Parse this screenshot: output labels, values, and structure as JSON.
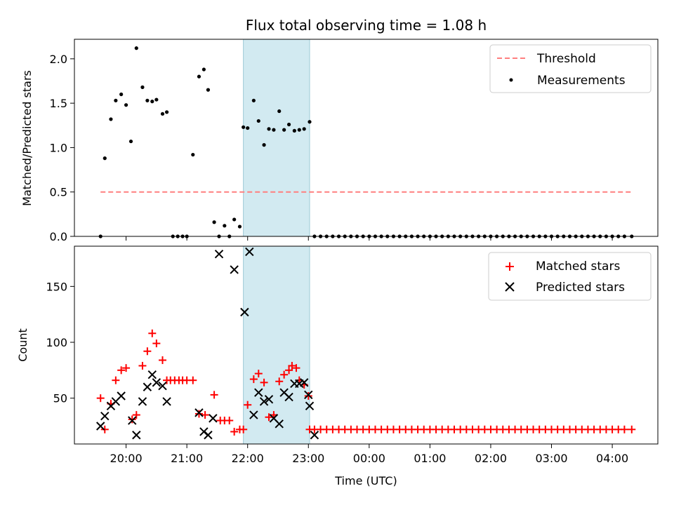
{
  "chart_data": [
    {
      "type": "scatter",
      "title": "Flux total observing time = 1.08 h",
      "xlabel": "",
      "ylabel": "Matched/Predicted stars",
      "x_unit": "hours after 20:00 UTC",
      "xlim": [
        -0.85,
        8.75
      ],
      "ylim": [
        0.0,
        2.22
      ],
      "yticks": [
        0.0,
        0.5,
        1.0,
        1.5,
        2.0
      ],
      "ytick_labels": [
        "0.0",
        "0.5",
        "1.0",
        "1.5",
        "2.0"
      ],
      "highlight_span": [
        1.93,
        3.02
      ],
      "legend": {
        "position": "top-right",
        "entries": [
          "Threshold",
          "Measurements"
        ]
      },
      "threshold": {
        "name": "Threshold",
        "x_range": [
          -0.42,
          8.32
        ],
        "y": 0.5,
        "color": "#ff7f7f"
      },
      "series": [
        {
          "name": "Measurements",
          "marker": "dot",
          "color": "#000000",
          "x": [
            -0.42,
            -0.35,
            -0.25,
            -0.17,
            -0.08,
            0.0,
            0.08,
            0.17,
            0.27,
            0.35,
            0.43,
            0.5,
            0.6,
            0.67,
            0.77,
            0.85,
            0.93,
            1.0,
            1.1,
            1.2,
            1.28,
            1.35,
            1.45,
            1.53,
            1.62,
            1.7,
            1.78,
            1.87,
            1.93,
            2.0,
            2.1,
            2.18,
            2.27,
            2.35,
            2.43,
            2.52,
            2.6,
            2.68,
            2.77,
            2.85,
            2.93,
            3.02,
            3.1,
            3.2,
            3.3,
            3.4,
            3.5,
            3.6,
            3.7,
            3.8,
            3.9,
            4.0,
            4.1,
            4.2,
            4.3,
            4.4,
            4.5,
            4.6,
            4.7,
            4.8,
            4.9,
            5.0,
            5.1,
            5.2,
            5.3,
            5.4,
            5.5,
            5.6,
            5.7,
            5.8,
            5.9,
            6.0,
            6.1,
            6.2,
            6.3,
            6.4,
            6.5,
            6.6,
            6.7,
            6.8,
            6.9,
            7.0,
            7.1,
            7.2,
            7.3,
            7.4,
            7.5,
            7.6,
            7.7,
            7.8,
            7.9,
            8.0,
            8.1,
            8.2,
            8.32
          ],
          "y": [
            0.0,
            0.88,
            1.32,
            1.53,
            1.6,
            1.48,
            1.07,
            2.12,
            1.68,
            1.53,
            1.52,
            1.54,
            1.38,
            1.4,
            0.0,
            0.0,
            0.0,
            0.0,
            0.92,
            1.8,
            1.88,
            1.65,
            0.16,
            0.0,
            0.12,
            0.0,
            0.19,
            0.11,
            1.23,
            1.22,
            1.53,
            1.3,
            1.03,
            1.21,
            1.2,
            1.41,
            1.2,
            1.26,
            1.19,
            1.2,
            1.21,
            1.29,
            0.0,
            0.0,
            0.0,
            0.0,
            0.0,
            0.0,
            0.0,
            0.0,
            0.0,
            0.0,
            0.0,
            0.0,
            0.0,
            0.0,
            0.0,
            0.0,
            0.0,
            0.0,
            0.0,
            0.0,
            0.0,
            0.0,
            0.0,
            0.0,
            0.0,
            0.0,
            0.0,
            0.0,
            0.0,
            0.0,
            0.0,
            0.0,
            0.0,
            0.0,
            0.0,
            0.0,
            0.0,
            0.0,
            0.0,
            0.0,
            0.0,
            0.0,
            0.0,
            0.0,
            0.0,
            0.0,
            0.0,
            0.0,
            0.0,
            0.0,
            0.0,
            0.0,
            0.0
          ]
        }
      ]
    },
    {
      "type": "scatter",
      "title": "",
      "xlabel": "Time (UTC)",
      "ylabel": "Count",
      "x_unit": "hours after 20:00 UTC",
      "xlim": [
        -0.85,
        8.75
      ],
      "ylim": [
        9,
        186
      ],
      "yticks": [
        50,
        100,
        150
      ],
      "ytick_labels": [
        "50",
        "100",
        "150"
      ],
      "xticks": [
        0,
        1,
        2,
        3,
        4,
        5,
        6,
        7,
        8
      ],
      "xtick_labels": [
        "20:00",
        "21:00",
        "22:00",
        "23:00",
        "00:00",
        "01:00",
        "02:00",
        "03:00",
        "04:00"
      ],
      "highlight_span": [
        1.93,
        3.02
      ],
      "legend": {
        "position": "top-right",
        "entries": [
          "Matched stars",
          "Predicted stars"
        ]
      },
      "series": [
        {
          "name": "Matched stars",
          "marker": "plus",
          "color": "#ff0000",
          "x": [
            -0.42,
            -0.35,
            -0.25,
            -0.17,
            -0.08,
            0.0,
            0.1,
            0.17,
            0.27,
            0.35,
            0.43,
            0.5,
            0.6,
            0.67,
            0.73,
            0.8,
            0.87,
            0.93,
            1.0,
            1.1,
            1.2,
            1.3,
            1.45,
            1.55,
            1.62,
            1.7,
            1.78,
            1.87,
            1.93,
            2.0,
            2.1,
            2.18,
            2.27,
            2.35,
            2.43,
            2.52,
            2.6,
            2.68,
            2.73,
            2.8,
            2.85,
            2.93,
            3.0,
            3.02,
            3.1,
            3.2,
            3.3,
            3.4,
            3.5,
            3.6,
            3.7,
            3.8,
            3.9,
            4.0,
            4.1,
            4.2,
            4.3,
            4.4,
            4.5,
            4.6,
            4.7,
            4.8,
            4.9,
            5.0,
            5.1,
            5.2,
            5.3,
            5.4,
            5.5,
            5.6,
            5.7,
            5.8,
            5.9,
            6.0,
            6.1,
            6.2,
            6.3,
            6.4,
            6.5,
            6.6,
            6.7,
            6.8,
            6.9,
            7.0,
            7.1,
            7.2,
            7.3,
            7.4,
            7.5,
            7.6,
            7.7,
            7.8,
            7.9,
            8.0,
            8.1,
            8.2,
            8.32
          ],
          "y": [
            50,
            22,
            45,
            66,
            75,
            77,
            31,
            35,
            79,
            92,
            108,
            99,
            84,
            66,
            66,
            66,
            66,
            66,
            66,
            66,
            36,
            35,
            53,
            30,
            30,
            30,
            20,
            22,
            22,
            44,
            67,
            72,
            64,
            33,
            35,
            65,
            71,
            75,
            79,
            77,
            66,
            62,
            52,
            22,
            22,
            22,
            22,
            22,
            22,
            22,
            22,
            22,
            22,
            22,
            22,
            22,
            22,
            22,
            22,
            22,
            22,
            22,
            22,
            22,
            22,
            22,
            22,
            22,
            22,
            22,
            22,
            22,
            22,
            22,
            22,
            22,
            22,
            22,
            22,
            22,
            22,
            22,
            22,
            22,
            22,
            22,
            22,
            22,
            22,
            22,
            22,
            22,
            22,
            22,
            22,
            22,
            22
          ]
        },
        {
          "name": "Predicted stars",
          "marker": "x",
          "color": "#000000",
          "x": [
            -0.42,
            -0.35,
            -0.25,
            -0.17,
            -0.08,
            0.1,
            0.17,
            0.27,
            0.35,
            0.43,
            0.5,
            0.6,
            0.67,
            1.2,
            1.28,
            1.35,
            1.43,
            1.53,
            1.78,
            1.95,
            2.03,
            2.1,
            2.18,
            2.27,
            2.35,
            2.43,
            2.52,
            2.6,
            2.68,
            2.77,
            2.85,
            2.93,
            3.0,
            3.02,
            3.1
          ],
          "y": [
            25,
            34,
            43,
            47,
            52,
            30,
            17,
            47,
            60,
            71,
            64,
            61,
            47,
            37,
            20,
            17,
            32,
            179,
            165,
            127,
            181,
            35,
            55,
            47,
            49,
            32,
            27,
            55,
            51,
            63,
            63,
            64,
            53,
            43,
            17
          ]
        }
      ]
    }
  ]
}
